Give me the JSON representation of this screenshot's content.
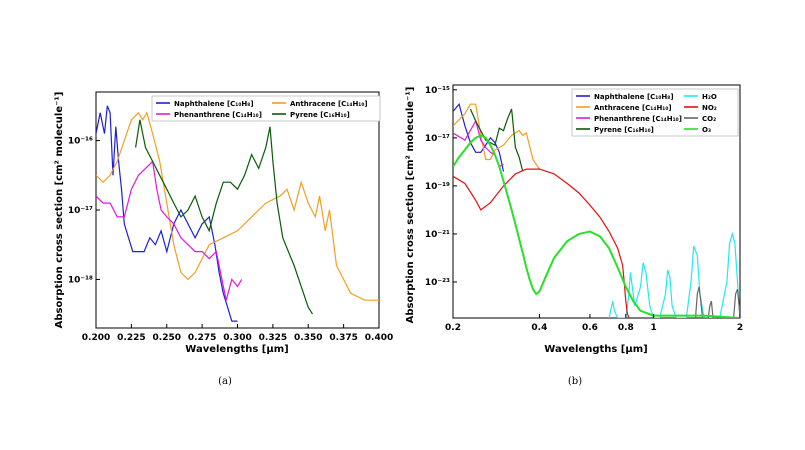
{
  "captions": {
    "a": "(a)",
    "b": "(b)"
  },
  "colors": {
    "naphthalene": "#1f1fd6",
    "anthracene": "#f0a020",
    "phenanthrene": "#e018e0",
    "pyrene": "#0a5a0a",
    "h2o": "#22e8f0",
    "no2": "#e01010",
    "co2": "#666666",
    "o3": "#28e028"
  },
  "chart_data": [
    {
      "type": "line",
      "panel": "a",
      "xlabel": "Wavelengths [μm]",
      "ylabel": "Absorption cross section [cm² molecule⁻¹]",
      "xlim": [
        0.2,
        0.4
      ],
      "ylim_log10": [
        -18.7,
        -15.3
      ],
      "yscale": "log",
      "xticks": [
        "0.200",
        "0.225",
        "0.250",
        "0.275",
        "0.300",
        "0.325",
        "0.350",
        "0.375",
        "0.400"
      ],
      "yticks": [
        "10⁻¹⁶",
        "10⁻¹⁷",
        "10⁻¹⁸"
      ],
      "legend_position": "top",
      "series": [
        {
          "name": "Naphthalene [C₁₀H₈]",
          "color_key": "naphthalene",
          "x": [
            0.2,
            0.203,
            0.206,
            0.208,
            0.21,
            0.212,
            0.214,
            0.216,
            0.218,
            0.22,
            0.223,
            0.226,
            0.23,
            0.234,
            0.238,
            0.242,
            0.246,
            0.25,
            0.255,
            0.26,
            0.265,
            0.27,
            0.275,
            0.28,
            0.284,
            0.287,
            0.29,
            0.293,
            0.296,
            0.3
          ],
          "log10y": [
            -15.9,
            -15.6,
            -15.9,
            -15.5,
            -15.6,
            -16.5,
            -15.8,
            -16.3,
            -16.7,
            -17.2,
            -17.4,
            -17.6,
            -17.6,
            -17.6,
            -17.4,
            -17.5,
            -17.3,
            -17.6,
            -17.2,
            -17.0,
            -17.2,
            -17.4,
            -17.2,
            -17.1,
            -17.5,
            -17.9,
            -18.2,
            -18.4,
            -18.6,
            -18.6
          ]
        },
        {
          "name": "Anthracene [C₁₄H₁₀]",
          "color_key": "anthracene",
          "x": [
            0.2,
            0.205,
            0.21,
            0.215,
            0.22,
            0.225,
            0.23,
            0.233,
            0.236,
            0.24,
            0.245,
            0.25,
            0.255,
            0.26,
            0.265,
            0.27,
            0.28,
            0.29,
            0.3,
            0.31,
            0.32,
            0.33,
            0.335,
            0.34,
            0.345,
            0.35,
            0.355,
            0.358,
            0.362,
            0.365,
            0.37,
            0.38,
            0.39,
            0.4
          ],
          "log10y": [
            -16.5,
            -16.6,
            -16.5,
            -16.3,
            -16.0,
            -15.7,
            -15.6,
            -15.7,
            -15.6,
            -15.9,
            -16.3,
            -16.9,
            -17.5,
            -17.9,
            -18.0,
            -17.9,
            -17.5,
            -17.4,
            -17.3,
            -17.1,
            -16.9,
            -16.8,
            -16.7,
            -17.0,
            -16.6,
            -16.9,
            -17.1,
            -16.8,
            -17.3,
            -17.0,
            -17.8,
            -18.2,
            -18.3,
            -18.3
          ]
        },
        {
          "name": "Phenanthrene [C₁₄H₁₀]",
          "color_key": "phenanthrene",
          "x": [
            0.2,
            0.205,
            0.21,
            0.215,
            0.22,
            0.225,
            0.23,
            0.235,
            0.24,
            0.243,
            0.246,
            0.25,
            0.255,
            0.26,
            0.265,
            0.27,
            0.275,
            0.28,
            0.285,
            0.288,
            0.292,
            0.296,
            0.3,
            0.303
          ],
          "log10y": [
            -16.8,
            -16.9,
            -16.9,
            -17.1,
            -17.1,
            -16.7,
            -16.5,
            -16.4,
            -16.3,
            -16.7,
            -17.0,
            -17.1,
            -17.2,
            -17.4,
            -17.5,
            -17.6,
            -17.6,
            -17.7,
            -17.6,
            -17.9,
            -18.3,
            -18.0,
            -18.1,
            -18.0
          ]
        },
        {
          "name": "Pyrene [C₁₆H₁₀]",
          "color_key": "pyrene",
          "x": [
            0.228,
            0.231,
            0.235,
            0.24,
            0.245,
            0.25,
            0.255,
            0.26,
            0.265,
            0.27,
            0.275,
            0.28,
            0.285,
            0.29,
            0.295,
            0.3,
            0.305,
            0.31,
            0.315,
            0.32,
            0.323,
            0.325,
            0.328,
            0.332,
            0.336,
            0.34,
            0.345,
            0.35,
            0.353
          ],
          "log10y": [
            -16.1,
            -15.7,
            -16.1,
            -16.3,
            -16.5,
            -16.7,
            -16.9,
            -17.1,
            -17.0,
            -16.8,
            -17.1,
            -17.3,
            -16.9,
            -16.6,
            -16.6,
            -16.7,
            -16.5,
            -16.2,
            -16.4,
            -16.1,
            -15.8,
            -16.3,
            -16.9,
            -17.4,
            -17.6,
            -17.8,
            -18.1,
            -18.4,
            -18.5
          ]
        }
      ]
    },
    {
      "type": "line",
      "panel": "b",
      "xlabel": "Wavelengths [μm]",
      "ylabel": "Absorption cross section [cm² molecule⁻¹]",
      "xlim": [
        0.2,
        2.0
      ],
      "xscale": "log",
      "ylim_log10": [
        -24.5,
        -14.8
      ],
      "yscale": "log",
      "xticks": [
        "0.2",
        "0.4",
        "0.6",
        "0.8",
        "1",
        "2"
      ],
      "yticks": [
        "10⁻¹⁵",
        "10⁻¹⁷",
        "10⁻¹⁹",
        "10⁻²¹",
        "10⁻²³"
      ],
      "legend_position": "top",
      "series": [
        {
          "name": "Naphthalene [C₁₀H₈]",
          "color_key": "naphthalene",
          "x": [
            0.2,
            0.21,
            0.22,
            0.23,
            0.24,
            0.25,
            0.26,
            0.27,
            0.28,
            0.29,
            0.3
          ],
          "log10y": [
            -15.9,
            -15.6,
            -16.5,
            -17.2,
            -17.6,
            -17.6,
            -17.3,
            -17.0,
            -17.2,
            -17.6,
            -18.4
          ]
        },
        {
          "name": "Anthracene [C₁₄H₁₀]",
          "color_key": "anthracene",
          "x": [
            0.2,
            0.22,
            0.23,
            0.24,
            0.25,
            0.26,
            0.27,
            0.28,
            0.3,
            0.32,
            0.34,
            0.35,
            0.36,
            0.38,
            0.4
          ],
          "log10y": [
            -16.5,
            -16.0,
            -15.6,
            -15.6,
            -16.9,
            -17.9,
            -17.9,
            -17.5,
            -17.3,
            -16.9,
            -16.7,
            -16.9,
            -16.8,
            -17.9,
            -18.3
          ]
        },
        {
          "name": "Phenanthrene [C₁₄H₁₀]",
          "color_key": "phenanthrene",
          "x": [
            0.2,
            0.22,
            0.24,
            0.25,
            0.26,
            0.27,
            0.28,
            0.29,
            0.3
          ],
          "log10y": [
            -16.8,
            -17.1,
            -16.3,
            -17.1,
            -17.4,
            -17.6,
            -17.7,
            -18.2,
            -18.1
          ]
        },
        {
          "name": "Pyrene [C₁₆H₁₀]",
          "color_key": "pyrene",
          "x": [
            0.23,
            0.24,
            0.26,
            0.28,
            0.29,
            0.3,
            0.31,
            0.32,
            0.33,
            0.34,
            0.35
          ],
          "log10y": [
            -15.8,
            -16.3,
            -17.1,
            -17.3,
            -16.6,
            -16.7,
            -16.2,
            -15.8,
            -17.4,
            -17.8,
            -18.4
          ]
        },
        {
          "name": "H₂O",
          "color_key": "h2o",
          "x": [
            0.7,
            0.72,
            0.73,
            0.75,
            0.8,
            0.82,
            0.83,
            0.86,
            0.9,
            0.92,
            0.94,
            0.97,
            1.0,
            1.05,
            1.1,
            1.12,
            1.14,
            1.16,
            1.2,
            1.3,
            1.35,
            1.38,
            1.42,
            1.45,
            1.5,
            1.6,
            1.7,
            1.8,
            1.84,
            1.88,
            1.92,
            1.96,
            2.0
          ],
          "log10y": [
            -24.5,
            -23.8,
            -24.2,
            -24.5,
            -24.5,
            -23.5,
            -22.6,
            -24.0,
            -23.2,
            -22.2,
            -22.6,
            -24.0,
            -24.5,
            -24.5,
            -23.5,
            -22.5,
            -22.8,
            -24.0,
            -24.5,
            -24.5,
            -23.0,
            -21.5,
            -21.9,
            -23.5,
            -24.5,
            -24.5,
            -24.5,
            -23.0,
            -21.4,
            -21.0,
            -21.4,
            -23.0,
            -24.5
          ]
        },
        {
          "name": "NO₂",
          "color_key": "no2",
          "x": [
            0.2,
            0.22,
            0.24,
            0.25,
            0.27,
            0.3,
            0.33,
            0.36,
            0.4,
            0.45,
            0.5,
            0.55,
            0.6,
            0.65,
            0.7,
            0.75,
            0.78,
            0.79,
            0.8,
            0.81,
            0.82
          ],
          "log10y": [
            -18.6,
            -18.9,
            -19.6,
            -20.0,
            -19.7,
            -19.0,
            -18.5,
            -18.3,
            -18.3,
            -18.5,
            -18.9,
            -19.3,
            -19.8,
            -20.3,
            -20.9,
            -21.6,
            -22.3,
            -23.0,
            -23.8,
            -24.3,
            -24.5
          ]
        },
        {
          "name": "CO₂",
          "color_key": "co2",
          "x": [
            1.4,
            1.42,
            1.44,
            1.46,
            1.48,
            1.55,
            1.57,
            1.59,
            1.61,
            1.9,
            1.93,
            1.96,
            1.98,
            2.0
          ],
          "log10y": [
            -24.5,
            -23.5,
            -23.2,
            -23.8,
            -24.5,
            -24.5,
            -24.0,
            -23.8,
            -24.5,
            -24.5,
            -23.5,
            -23.3,
            -23.8,
            -24.5
          ]
        },
        {
          "name": "O₃",
          "color_key": "o3",
          "x": [
            0.2,
            0.21,
            0.22,
            0.23,
            0.24,
            0.25,
            0.26,
            0.27,
            0.28,
            0.29,
            0.3,
            0.31,
            0.32,
            0.33,
            0.34,
            0.35,
            0.36,
            0.37,
            0.38,
            0.39,
            0.4,
            0.42,
            0.45,
            0.5,
            0.55,
            0.6,
            0.65,
            0.7,
            0.75,
            0.8,
            0.85,
            0.9,
            1.0,
            1.2,
            1.5,
            2.0
          ],
          "log10y": [
            -18.2,
            -17.8,
            -17.5,
            -17.2,
            -17.0,
            -16.9,
            -17.0,
            -17.3,
            -17.7,
            -18.2,
            -18.8,
            -19.4,
            -20.0,
            -20.6,
            -21.2,
            -21.8,
            -22.4,
            -22.9,
            -23.3,
            -23.5,
            -23.4,
            -22.8,
            -22.0,
            -21.3,
            -21.0,
            -20.9,
            -21.1,
            -21.6,
            -22.4,
            -23.2,
            -23.8,
            -24.2,
            -24.4,
            -24.4,
            -24.4,
            -24.5
          ]
        }
      ]
    }
  ]
}
